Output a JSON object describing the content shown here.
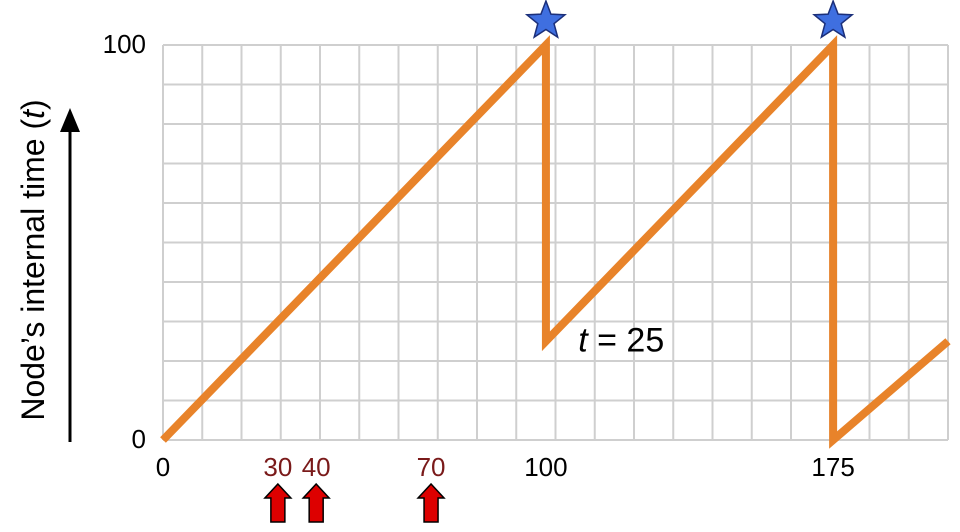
{
  "chart_data": {
    "type": "line",
    "ylabel_prefix": "Node’s internal time (",
    "ylabel_var": "t",
    "ylabel_suffix": ")",
    "xlim": [
      0,
      205
    ],
    "ylim": [
      0,
      100
    ],
    "grid": true,
    "x_ticks": [
      {
        "value": 0,
        "label": "0",
        "color": "#000000"
      },
      {
        "value": 30,
        "label": "30",
        "color": "#7a1a1a"
      },
      {
        "value": 40,
        "label": "40",
        "color": "#7a1a1a"
      },
      {
        "value": 70,
        "label": "70",
        "color": "#7a1a1a"
      },
      {
        "value": 100,
        "label": "100",
        "color": "#000000"
      },
      {
        "value": 175,
        "label": "175",
        "color": "#000000"
      }
    ],
    "y_ticks": [
      {
        "value": 0,
        "label": "0"
      },
      {
        "value": 100,
        "label": "100"
      }
    ],
    "series": [
      {
        "color": "#e8832a",
        "points": [
          [
            0,
            0
          ],
          [
            100,
            100
          ],
          [
            100,
            25
          ],
          [
            175,
            100
          ],
          [
            175,
            0
          ],
          [
            205,
            25
          ]
        ]
      }
    ],
    "markers": [
      {
        "type": "star",
        "x": 100,
        "y": 100,
        "color": "#3f6fe0"
      },
      {
        "type": "star",
        "x": 175,
        "y": 100,
        "color": "#3f6fe0"
      }
    ],
    "arrows": [
      {
        "x": 30,
        "color": "#dd0000"
      },
      {
        "x": 40,
        "color": "#dd0000"
      },
      {
        "x": 70,
        "color": "#dd0000"
      }
    ],
    "annotation": {
      "var": "t",
      "text": " = 25",
      "x": 110,
      "y": 25
    }
  }
}
